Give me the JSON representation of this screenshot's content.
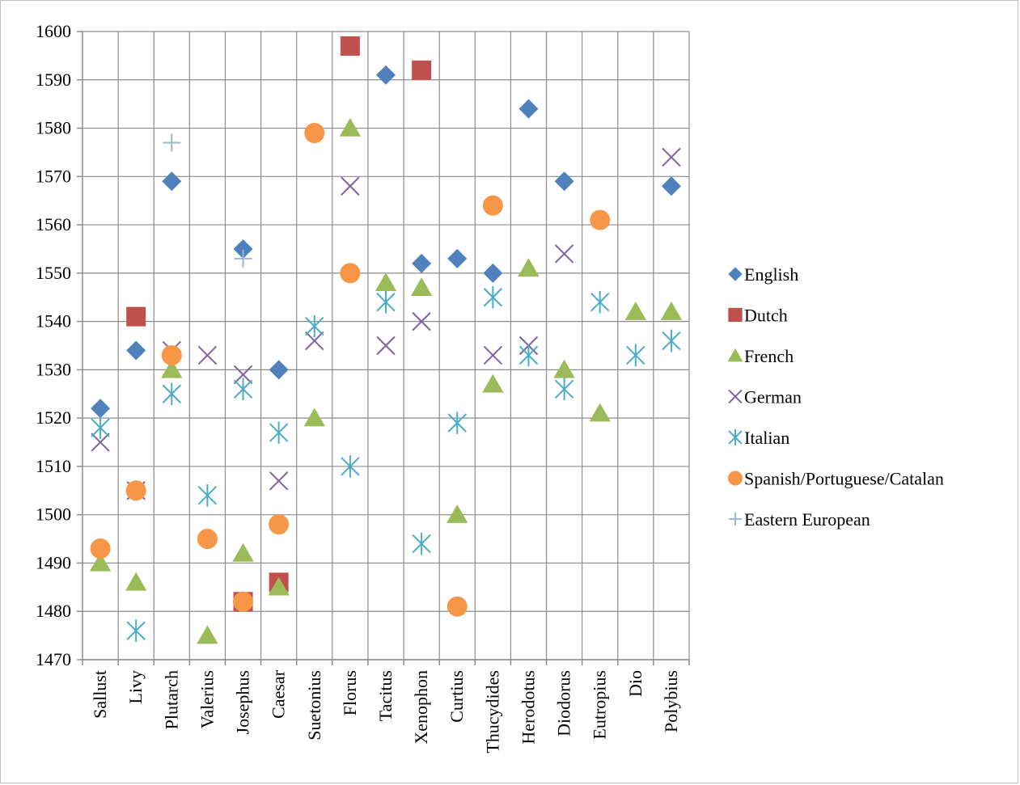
{
  "chart_data": {
    "type": "scatter",
    "categories": [
      "Sallust",
      "Livy",
      "Plutarch",
      "Valerius",
      "Josephus",
      "Caesar",
      "Suetonius",
      "Florus",
      "Tacitus",
      "Xenophon",
      "Curtius",
      "Thucydides",
      "Herodotus",
      "Diodorus",
      "Eutropius",
      "Dio",
      "Polybius"
    ],
    "ylim": [
      1470,
      1600
    ],
    "yticks": [
      1470,
      1480,
      1490,
      1500,
      1510,
      1520,
      1530,
      1540,
      1550,
      1560,
      1570,
      1580,
      1590,
      1600
    ],
    "grid": true,
    "legend_position": "right",
    "series": [
      {
        "name": "English",
        "marker": "diamond",
        "color": "#4F81BD",
        "points": [
          [
            "Sallust",
            1522
          ],
          [
            "Livy",
            1534
          ],
          [
            "Plutarch",
            1569
          ],
          [
            "Josephus",
            1555
          ],
          [
            "Caesar",
            1530
          ],
          [
            "Tacitus",
            1591
          ],
          [
            "Xenophon",
            1552
          ],
          [
            "Curtius",
            1553
          ],
          [
            "Thucydides",
            1550
          ],
          [
            "Herodotus",
            1584
          ],
          [
            "Diodorus",
            1569
          ],
          [
            "Polybius",
            1568
          ]
        ]
      },
      {
        "name": "Dutch",
        "marker": "square",
        "color": "#C0504D",
        "points": [
          [
            "Livy",
            1541
          ],
          [
            "Josephus",
            1482
          ],
          [
            "Caesar",
            1486
          ],
          [
            "Florus",
            1597
          ],
          [
            "Xenophon",
            1592
          ]
        ]
      },
      {
        "name": "French",
        "marker": "triangle",
        "color": "#9BBB59",
        "points": [
          [
            "Sallust",
            1490
          ],
          [
            "Livy",
            1486
          ],
          [
            "Plutarch",
            1530
          ],
          [
            "Valerius",
            1475
          ],
          [
            "Josephus",
            1492
          ],
          [
            "Caesar",
            1485
          ],
          [
            "Suetonius",
            1520
          ],
          [
            "Florus",
            1580
          ],
          [
            "Tacitus",
            1548
          ],
          [
            "Xenophon",
            1547
          ],
          [
            "Curtius",
            1500
          ],
          [
            "Thucydides",
            1527
          ],
          [
            "Herodotus",
            1551
          ],
          [
            "Diodorus",
            1530
          ],
          [
            "Eutropius",
            1521
          ],
          [
            "Dio",
            1542
          ],
          [
            "Polybius",
            1542
          ]
        ]
      },
      {
        "name": "German",
        "marker": "x",
        "color": "#8064A2",
        "points": [
          [
            "Sallust",
            1515
          ],
          [
            "Livy",
            1505
          ],
          [
            "Plutarch",
            1534
          ],
          [
            "Valerius",
            1533
          ],
          [
            "Josephus",
            1529
          ],
          [
            "Caesar",
            1507
          ],
          [
            "Suetonius",
            1536
          ],
          [
            "Florus",
            1568
          ],
          [
            "Tacitus",
            1535
          ],
          [
            "Xenophon",
            1540
          ],
          [
            "Thucydides",
            1533
          ],
          [
            "Herodotus",
            1535
          ],
          [
            "Diodorus",
            1554
          ],
          [
            "Polybius",
            1574
          ]
        ]
      },
      {
        "name": "Italian",
        "marker": "star",
        "color": "#4BACC6",
        "points": [
          [
            "Sallust",
            1518
          ],
          [
            "Livy",
            1476
          ],
          [
            "Plutarch",
            1525
          ],
          [
            "Valerius",
            1504
          ],
          [
            "Josephus",
            1526
          ],
          [
            "Caesar",
            1517
          ],
          [
            "Suetonius",
            1539
          ],
          [
            "Florus",
            1510
          ],
          [
            "Tacitus",
            1544
          ],
          [
            "Xenophon",
            1494
          ],
          [
            "Curtius",
            1519
          ],
          [
            "Thucydides",
            1545
          ],
          [
            "Herodotus",
            1533
          ],
          [
            "Diodorus",
            1526
          ],
          [
            "Eutropius",
            1544
          ],
          [
            "Dio",
            1533
          ],
          [
            "Polybius",
            1536
          ]
        ]
      },
      {
        "name": "Spanish/Portuguese/Catalan",
        "marker": "circle",
        "color": "#F79646",
        "points": [
          [
            "Sallust",
            1493
          ],
          [
            "Livy",
            1505
          ],
          [
            "Plutarch",
            1533
          ],
          [
            "Valerius",
            1495
          ],
          [
            "Josephus",
            1482
          ],
          [
            "Caesar",
            1498
          ],
          [
            "Suetonius",
            1579
          ],
          [
            "Florus",
            1550
          ],
          [
            "Curtius",
            1481
          ],
          [
            "Thucydides",
            1564
          ],
          [
            "Eutropius",
            1561
          ]
        ]
      },
      {
        "name": "Eastern European",
        "marker": "plus",
        "color": "#9FB4D9",
        "points": [
          [
            "Plutarch",
            1577
          ],
          [
            "Josephus",
            1553
          ]
        ]
      }
    ]
  }
}
